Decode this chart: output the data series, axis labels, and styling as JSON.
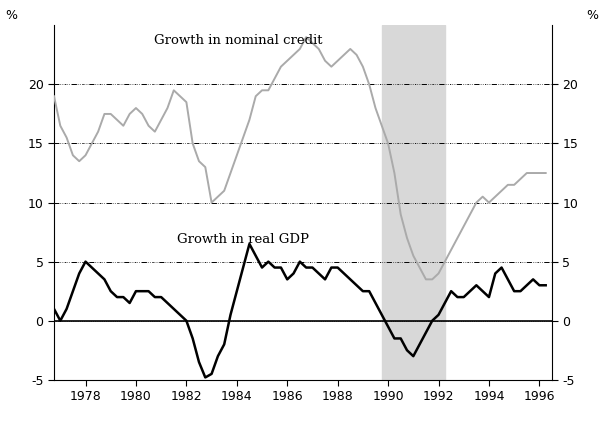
{
  "ylabel_left": "%",
  "ylabel_right": "%",
  "ylim": [
    -5,
    25
  ],
  "yticks": [
    -5,
    0,
    5,
    10,
    15,
    20
  ],
  "xlim": [
    1976.75,
    1996.5
  ],
  "xticks": [
    1978,
    1980,
    1982,
    1984,
    1986,
    1988,
    1990,
    1992,
    1994,
    1996
  ],
  "shaded_region": [
    1989.75,
    1992.25
  ],
  "shaded_color": "#d8d8d8",
  "label_credit": "Growth in nominal credit",
  "label_gdp": "Growth in real GDP",
  "credit_color": "#aaaaaa",
  "gdp_color": "#000000",
  "credit_data": {
    "x": [
      1976.75,
      1977.0,
      1977.25,
      1977.5,
      1977.75,
      1978.0,
      1978.25,
      1978.5,
      1978.75,
      1979.0,
      1979.25,
      1979.5,
      1979.75,
      1980.0,
      1980.25,
      1980.5,
      1980.75,
      1981.0,
      1981.25,
      1981.5,
      1981.75,
      1982.0,
      1982.25,
      1982.5,
      1982.75,
      1983.0,
      1983.25,
      1983.5,
      1983.75,
      1984.0,
      1984.25,
      1984.5,
      1984.75,
      1985.0,
      1985.25,
      1985.5,
      1985.75,
      1986.0,
      1986.25,
      1986.5,
      1986.75,
      1987.0,
      1987.25,
      1987.5,
      1987.75,
      1988.0,
      1988.25,
      1988.5,
      1988.75,
      1989.0,
      1989.25,
      1989.5,
      1989.75,
      1990.0,
      1990.25,
      1990.5,
      1990.75,
      1991.0,
      1991.25,
      1991.5,
      1991.75,
      1992.0,
      1992.25,
      1992.5,
      1992.75,
      1993.0,
      1993.25,
      1993.5,
      1993.75,
      1994.0,
      1994.25,
      1994.5,
      1994.75,
      1995.0,
      1995.25,
      1995.5,
      1995.75,
      1996.0,
      1996.25
    ],
    "y": [
      19.0,
      16.5,
      15.5,
      14.0,
      13.5,
      14.0,
      15.0,
      16.0,
      17.5,
      17.5,
      17.0,
      16.5,
      17.5,
      18.0,
      17.5,
      16.5,
      16.0,
      17.0,
      18.0,
      19.5,
      19.0,
      18.5,
      15.0,
      13.5,
      13.0,
      10.0,
      10.5,
      11.0,
      12.5,
      14.0,
      15.5,
      17.0,
      19.0,
      19.5,
      19.5,
      20.5,
      21.5,
      22.0,
      22.5,
      23.0,
      24.0,
      23.5,
      23.0,
      22.0,
      21.5,
      22.0,
      22.5,
      23.0,
      22.5,
      21.5,
      20.0,
      18.0,
      16.5,
      15.0,
      12.5,
      9.0,
      7.0,
      5.5,
      4.5,
      3.5,
      3.5,
      4.0,
      5.0,
      6.0,
      7.0,
      8.0,
      9.0,
      10.0,
      10.5,
      10.0,
      10.5,
      11.0,
      11.5,
      11.5,
      12.0,
      12.5,
      12.5,
      12.5,
      12.5
    ]
  },
  "gdp_data": {
    "x": [
      1976.75,
      1977.0,
      1977.25,
      1977.5,
      1977.75,
      1978.0,
      1978.25,
      1978.5,
      1978.75,
      1979.0,
      1979.25,
      1979.5,
      1979.75,
      1980.0,
      1980.25,
      1980.5,
      1980.75,
      1981.0,
      1981.25,
      1981.5,
      1981.75,
      1982.0,
      1982.25,
      1982.5,
      1982.75,
      1983.0,
      1983.25,
      1983.5,
      1983.75,
      1984.0,
      1984.25,
      1984.5,
      1984.75,
      1985.0,
      1985.25,
      1985.5,
      1985.75,
      1986.0,
      1986.25,
      1986.5,
      1986.75,
      1987.0,
      1987.25,
      1987.5,
      1987.75,
      1988.0,
      1988.25,
      1988.5,
      1988.75,
      1989.0,
      1989.25,
      1989.5,
      1989.75,
      1990.0,
      1990.25,
      1990.5,
      1990.75,
      1991.0,
      1991.25,
      1991.5,
      1991.75,
      1992.0,
      1992.25,
      1992.5,
      1992.75,
      1993.0,
      1993.25,
      1993.5,
      1993.75,
      1994.0,
      1994.25,
      1994.5,
      1994.75,
      1995.0,
      1995.25,
      1995.5,
      1995.75,
      1996.0,
      1996.25
    ],
    "y": [
      1.0,
      0.0,
      1.0,
      2.5,
      4.0,
      5.0,
      4.5,
      4.0,
      3.5,
      2.5,
      2.0,
      2.0,
      1.5,
      2.5,
      2.5,
      2.5,
      2.0,
      2.0,
      1.5,
      1.0,
      0.5,
      0.0,
      -1.5,
      -3.5,
      -4.8,
      -4.5,
      -3.0,
      -2.0,
      0.5,
      2.5,
      4.5,
      6.5,
      5.5,
      4.5,
      5.0,
      4.5,
      4.5,
      3.5,
      4.0,
      5.0,
      4.5,
      4.5,
      4.0,
      3.5,
      4.5,
      4.5,
      4.0,
      3.5,
      3.0,
      2.5,
      2.5,
      1.5,
      0.5,
      -0.5,
      -1.5,
      -1.5,
      -2.5,
      -3.0,
      -2.0,
      -1.0,
      0.0,
      0.5,
      1.5,
      2.5,
      2.0,
      2.0,
      2.5,
      3.0,
      2.5,
      2.0,
      4.0,
      4.5,
      3.5,
      2.5,
      2.5,
      3.0,
      3.5,
      3.0,
      3.0
    ]
  },
  "background_color": "#ffffff",
  "grid_color": "#000000",
  "dashdot_levels": [
    5,
    10,
    15,
    20
  ],
  "dotted_levels": [
    5,
    10,
    15,
    20
  ],
  "zero_line": 0
}
